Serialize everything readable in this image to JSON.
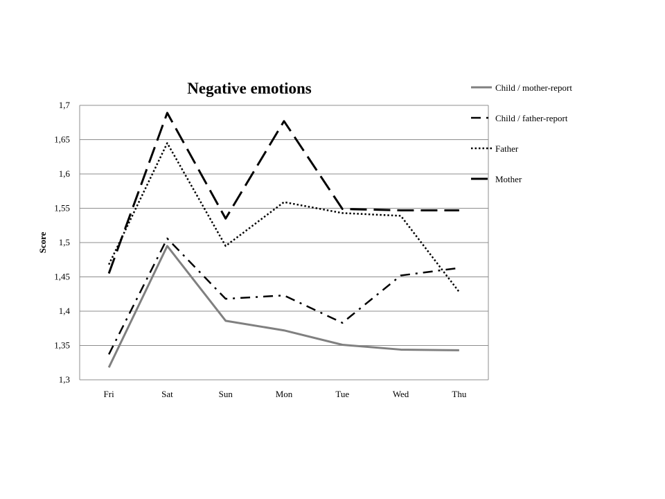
{
  "chart_data": {
    "type": "line",
    "title": "Negative emotions",
    "xlabel": "",
    "ylabel": "Score",
    "categories": [
      "Fri",
      "Sat",
      "Sun",
      "Mon",
      "Tue",
      "Wed",
      "Thu"
    ],
    "ylim": [
      1.3,
      1.7
    ],
    "yticks": [
      "1,3",
      "1,35",
      "1,4",
      "1,45",
      "1,5",
      "1,55",
      "1,6",
      "1,65",
      "1,7"
    ],
    "grid": true,
    "legend": "right",
    "series": [
      {
        "name": "Child / mother-report",
        "style": "solid",
        "color": "#808080",
        "values": [
          1.318,
          1.495,
          1.386,
          1.372,
          1.351,
          1.344,
          1.343
        ]
      },
      {
        "name": "Child / father-report",
        "style": "dashdot",
        "color": "#000000",
        "values": [
          1.337,
          1.506,
          1.418,
          1.423,
          1.383,
          1.452,
          1.463
        ]
      },
      {
        "name": "Father",
        "style": "dotted",
        "color": "#000000",
        "values": [
          1.468,
          1.645,
          1.495,
          1.559,
          1.543,
          1.539,
          1.428
        ]
      },
      {
        "name": "Mother",
        "style": "longdash",
        "color": "#000000",
        "values": [
          1.455,
          1.689,
          1.535,
          1.677,
          1.549,
          1.547,
          1.547
        ]
      }
    ]
  }
}
